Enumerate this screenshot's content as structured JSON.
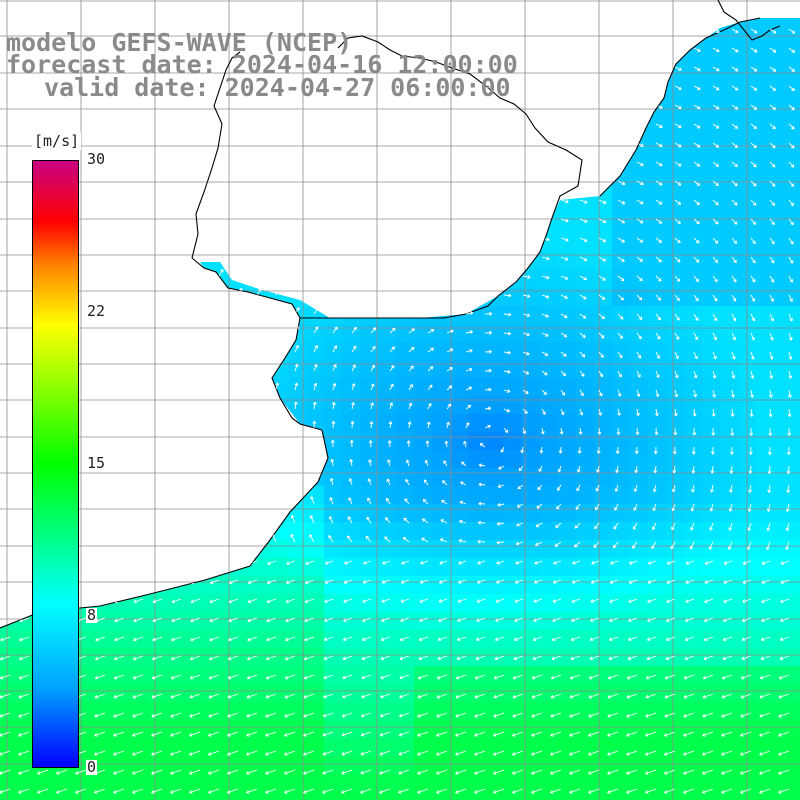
{
  "title": {
    "line1": "modelo GEFS-WAVE (NCEP)",
    "line2": "forecast date: 2024-04-16 12:00:00",
    "line3": "valid date: 2024-04-27 06:00:00"
  },
  "legend": {
    "unit": "[m/s]",
    "ticks": [
      "30",
      "22",
      "15",
      "8",
      "0"
    ],
    "tick_values": [
      30,
      22,
      15,
      8,
      0
    ],
    "range": [
      0,
      30
    ],
    "colors": [
      "#0000ff",
      "#00a2ff",
      "#00ffff",
      "#00ff00",
      "#ffff00",
      "#ff8000",
      "#ff0000",
      "#c80082"
    ]
  },
  "map": {
    "field": "surface wind speed and direction",
    "land_color": "#ffffff",
    "grid_color": "#8c8c8c",
    "coast_color": "#000000",
    "arrow_color": "#ffffff"
  }
}
